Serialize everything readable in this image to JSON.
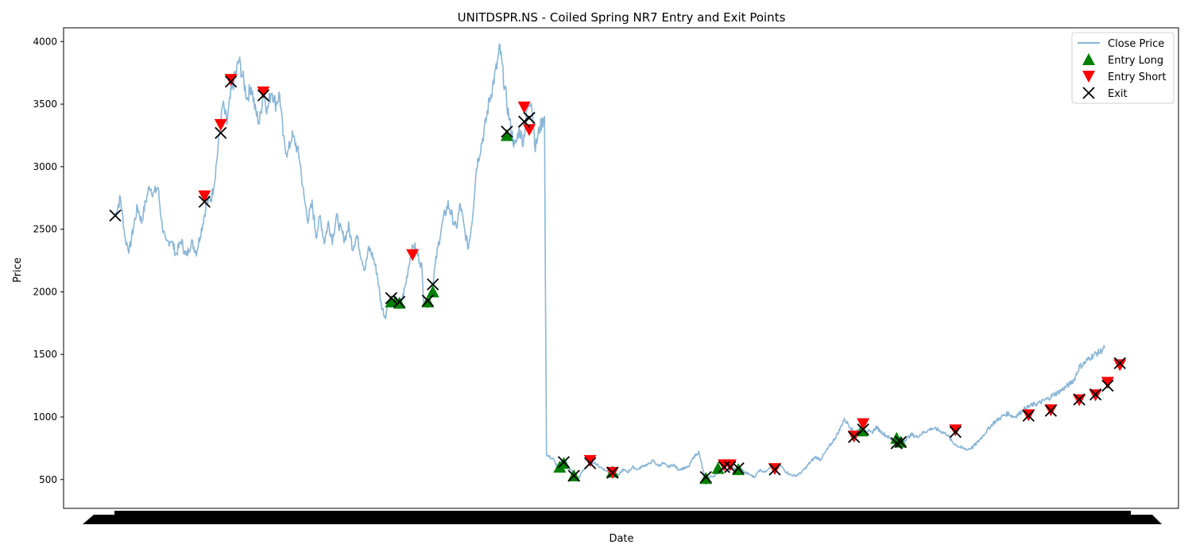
{
  "chart_data": {
    "type": "line",
    "title": "UNITDSPR.NS - Coiled Spring NR7 Entry and Exit Points",
    "xlabel": "Date",
    "ylabel": "Price",
    "xlim": [
      0,
      1000
    ],
    "ylim": [
      270,
      4110
    ],
    "yticks": [
      500,
      1000,
      1500,
      2000,
      2500,
      3000,
      3500,
      4000
    ],
    "grid": false,
    "legend_placement": "top-right",
    "legend": [
      "Close Price",
      "Entry Long",
      "Entry Short",
      "Exit"
    ],
    "colors": {
      "close_price": "#8ab6d6",
      "entry_long": "#008000",
      "entry_short": "#ff0000",
      "exit": "#000000"
    },
    "close_price_anchors": [
      [
        0,
        2610
      ],
      [
        5,
        2750
      ],
      [
        10,
        2420
      ],
      [
        14,
        2330
      ],
      [
        18,
        2520
      ],
      [
        22,
        2680
      ],
      [
        26,
        2560
      ],
      [
        30,
        2720
      ],
      [
        34,
        2850
      ],
      [
        38,
        2780
      ],
      [
        42,
        2840
      ],
      [
        46,
        2550
      ],
      [
        50,
        2380
      ],
      [
        55,
        2420
      ],
      [
        60,
        2300
      ],
      [
        65,
        2410
      ],
      [
        70,
        2280
      ],
      [
        75,
        2400
      ],
      [
        80,
        2320
      ],
      [
        85,
        2500
      ],
      [
        90,
        2700
      ],
      [
        95,
        2760
      ],
      [
        98,
        2900
      ],
      [
        102,
        3200
      ],
      [
        106,
        3500
      ],
      [
        110,
        3350
      ],
      [
        114,
        3580
      ],
      [
        118,
        3720
      ],
      [
        122,
        3850
      ],
      [
        126,
        3700
      ],
      [
        130,
        3550
      ],
      [
        134,
        3650
      ],
      [
        138,
        3450
      ],
      [
        142,
        3350
      ],
      [
        146,
        3600
      ],
      [
        150,
        3450
      ],
      [
        154,
        3620
      ],
      [
        158,
        3500
      ],
      [
        162,
        3580
      ],
      [
        166,
        3200
      ],
      [
        170,
        3100
      ],
      [
        174,
        3250
      ],
      [
        178,
        3180
      ],
      [
        182,
        3050
      ],
      [
        186,
        2750
      ],
      [
        190,
        2580
      ],
      [
        194,
        2700
      ],
      [
        198,
        2450
      ],
      [
        202,
        2600
      ],
      [
        206,
        2400
      ],
      [
        210,
        2550
      ],
      [
        214,
        2420
      ],
      [
        218,
        2600
      ],
      [
        222,
        2500
      ],
      [
        226,
        2420
      ],
      [
        230,
        2520
      ],
      [
        234,
        2350
      ],
      [
        238,
        2450
      ],
      [
        242,
        2300
      ],
      [
        246,
        2180
      ],
      [
        250,
        2350
      ],
      [
        254,
        2280
      ],
      [
        258,
        2150
      ],
      [
        262,
        1900
      ],
      [
        266,
        1800
      ],
      [
        270,
        1940
      ],
      [
        274,
        1890
      ],
      [
        278,
        1930
      ],
      [
        282,
        1920
      ],
      [
        286,
        2050
      ],
      [
        290,
        2250
      ],
      [
        294,
        2380
      ],
      [
        298,
        2300
      ],
      [
        302,
        2200
      ],
      [
        304,
        1930
      ],
      [
        308,
        1900
      ],
      [
        312,
        2000
      ],
      [
        316,
        2250
      ],
      [
        320,
        2450
      ],
      [
        324,
        2600
      ],
      [
        328,
        2700
      ],
      [
        332,
        2600
      ],
      [
        336,
        2500
      ],
      [
        340,
        2700
      ],
      [
        344,
        2500
      ],
      [
        348,
        2350
      ],
      [
        352,
        2600
      ],
      [
        356,
        3000
      ],
      [
        360,
        3150
      ],
      [
        364,
        3300
      ],
      [
        368,
        3500
      ],
      [
        372,
        3650
      ],
      [
        376,
        3800
      ],
      [
        379,
        3950
      ],
      [
        382,
        3750
      ],
      [
        386,
        3500
      ],
      [
        390,
        3300
      ],
      [
        394,
        3150
      ],
      [
        398,
        3300
      ],
      [
        402,
        3200
      ],
      [
        406,
        3450
      ],
      [
        410,
        3550
      ],
      [
        412,
        3350
      ],
      [
        414,
        3150
      ],
      [
        418,
        3300
      ],
      [
        422,
        3380
      ],
      [
        423,
        3400
      ],
      [
        424,
        2000
      ],
      [
        425,
        700
      ],
      [
        428,
        680
      ],
      [
        432,
        660
      ],
      [
        436,
        600
      ],
      [
        440,
        650
      ],
      [
        444,
        620
      ],
      [
        448,
        580
      ],
      [
        452,
        560
      ],
      [
        456,
        500
      ],
      [
        460,
        560
      ],
      [
        464,
        600
      ],
      [
        468,
        620
      ],
      [
        472,
        640
      ],
      [
        476,
        610
      ],
      [
        480,
        590
      ],
      [
        484,
        570
      ],
      [
        488,
        550
      ],
      [
        492,
        560
      ],
      [
        496,
        530
      ],
      [
        500,
        580
      ],
      [
        505,
        560
      ],
      [
        510,
        600
      ],
      [
        515,
        580
      ],
      [
        520,
        610
      ],
      [
        525,
        620
      ],
      [
        530,
        650
      ],
      [
        535,
        610
      ],
      [
        540,
        630
      ],
      [
        545,
        600
      ],
      [
        550,
        620
      ],
      [
        555,
        580
      ],
      [
        560,
        590
      ],
      [
        565,
        600
      ],
      [
        570,
        680
      ],
      [
        575,
        720
      ],
      [
        578,
        620
      ],
      [
        582,
        470
      ],
      [
        586,
        520
      ],
      [
        590,
        530
      ],
      [
        595,
        560
      ],
      [
        600,
        600
      ],
      [
        605,
        620
      ],
      [
        610,
        580
      ],
      [
        615,
        600
      ],
      [
        620,
        560
      ],
      [
        625,
        540
      ],
      [
        630,
        520
      ],
      [
        635,
        580
      ],
      [
        640,
        560
      ],
      [
        645,
        600
      ],
      [
        650,
        580
      ],
      [
        655,
        620
      ],
      [
        660,
        570
      ],
      [
        665,
        540
      ],
      [
        670,
        530
      ],
      [
        675,
        550
      ],
      [
        680,
        590
      ],
      [
        685,
        640
      ],
      [
        690,
        680
      ],
      [
        695,
        660
      ],
      [
        700,
        720
      ],
      [
        705,
        780
      ],
      [
        710,
        840
      ],
      [
        714,
        900
      ],
      [
        718,
        980
      ],
      [
        722,
        950
      ],
      [
        726,
        900
      ],
      [
        730,
        880
      ],
      [
        735,
        920
      ],
      [
        740,
        900
      ],
      [
        745,
        870
      ],
      [
        750,
        920
      ],
      [
        755,
        880
      ],
      [
        760,
        850
      ],
      [
        765,
        820
      ],
      [
        770,
        790
      ],
      [
        775,
        800
      ],
      [
        780,
        830
      ],
      [
        785,
        860
      ],
      [
        790,
        840
      ],
      [
        795,
        870
      ],
      [
        800,
        890
      ],
      [
        805,
        910
      ],
      [
        810,
        900
      ],
      [
        815,
        880
      ],
      [
        820,
        860
      ],
      [
        825,
        800
      ],
      [
        830,
        770
      ],
      [
        835,
        750
      ],
      [
        840,
        740
      ],
      [
        845,
        760
      ],
      [
        850,
        800
      ],
      [
        855,
        850
      ],
      [
        860,
        900
      ],
      [
        865,
        950
      ],
      [
        870,
        980
      ],
      [
        875,
        1010
      ],
      [
        880,
        1030
      ],
      [
        885,
        1000
      ],
      [
        890,
        1020
      ],
      [
        895,
        1060
      ],
      [
        900,
        1080
      ],
      [
        905,
        1100
      ],
      [
        910,
        1110
      ],
      [
        915,
        1130
      ],
      [
        920,
        1150
      ],
      [
        925,
        1180
      ],
      [
        930,
        1200
      ],
      [
        935,
        1230
      ],
      [
        940,
        1260
      ],
      [
        945,
        1300
      ],
      [
        950,
        1400
      ],
      [
        955,
        1430
      ],
      [
        960,
        1470
      ],
      [
        965,
        1500
      ],
      [
        970,
        1520
      ],
      [
        975,
        1550
      ]
    ],
    "entry_long": [
      [
        272,
        1920
      ],
      [
        276,
        1920
      ],
      [
        280,
        1910
      ],
      [
        308,
        1920
      ],
      [
        313,
        2000
      ],
      [
        386,
        3250
      ],
      [
        438,
        600
      ],
      [
        442,
        630
      ],
      [
        452,
        530
      ],
      [
        490,
        560
      ],
      [
        582,
        510
      ],
      [
        594,
        590
      ],
      [
        614,
        580
      ],
      [
        736,
        890
      ],
      [
        770,
        830
      ],
      [
        774,
        800
      ]
    ],
    "entry_short": [
      [
        88,
        2760
      ],
      [
        104,
        3330
      ],
      [
        114,
        3690
      ],
      [
        146,
        3590
      ],
      [
        293,
        2290
      ],
      [
        403,
        3470
      ],
      [
        408,
        3290
      ],
      [
        468,
        645
      ],
      [
        490,
        550
      ],
      [
        600,
        610
      ],
      [
        606,
        610
      ],
      [
        650,
        580
      ],
      [
        728,
        840
      ],
      [
        737,
        940
      ],
      [
        828,
        890
      ],
      [
        900,
        1010
      ],
      [
        922,
        1050
      ],
      [
        950,
        1130
      ],
      [
        966,
        1170
      ],
      [
        978,
        1270
      ],
      [
        990,
        1410
      ]
    ],
    "exit": [
      [
        0,
        2610
      ],
      [
        88,
        2720
      ],
      [
        104,
        3270
      ],
      [
        114,
        3680
      ],
      [
        146,
        3570
      ],
      [
        272,
        1950
      ],
      [
        280,
        1920
      ],
      [
        308,
        1930
      ],
      [
        313,
        2060
      ],
      [
        386,
        3280
      ],
      [
        403,
        3360
      ],
      [
        408,
        3390
      ],
      [
        442,
        640
      ],
      [
        452,
        530
      ],
      [
        468,
        630
      ],
      [
        490,
        555
      ],
      [
        582,
        520
      ],
      [
        600,
        600
      ],
      [
        606,
        600
      ],
      [
        614,
        590
      ],
      [
        650,
        580
      ],
      [
        728,
        840
      ],
      [
        737,
        900
      ],
      [
        770,
        790
      ],
      [
        774,
        800
      ],
      [
        828,
        880
      ],
      [
        900,
        1010
      ],
      [
        922,
        1050
      ],
      [
        950,
        1140
      ],
      [
        966,
        1180
      ],
      [
        978,
        1250
      ],
      [
        990,
        1430
      ]
    ]
  }
}
